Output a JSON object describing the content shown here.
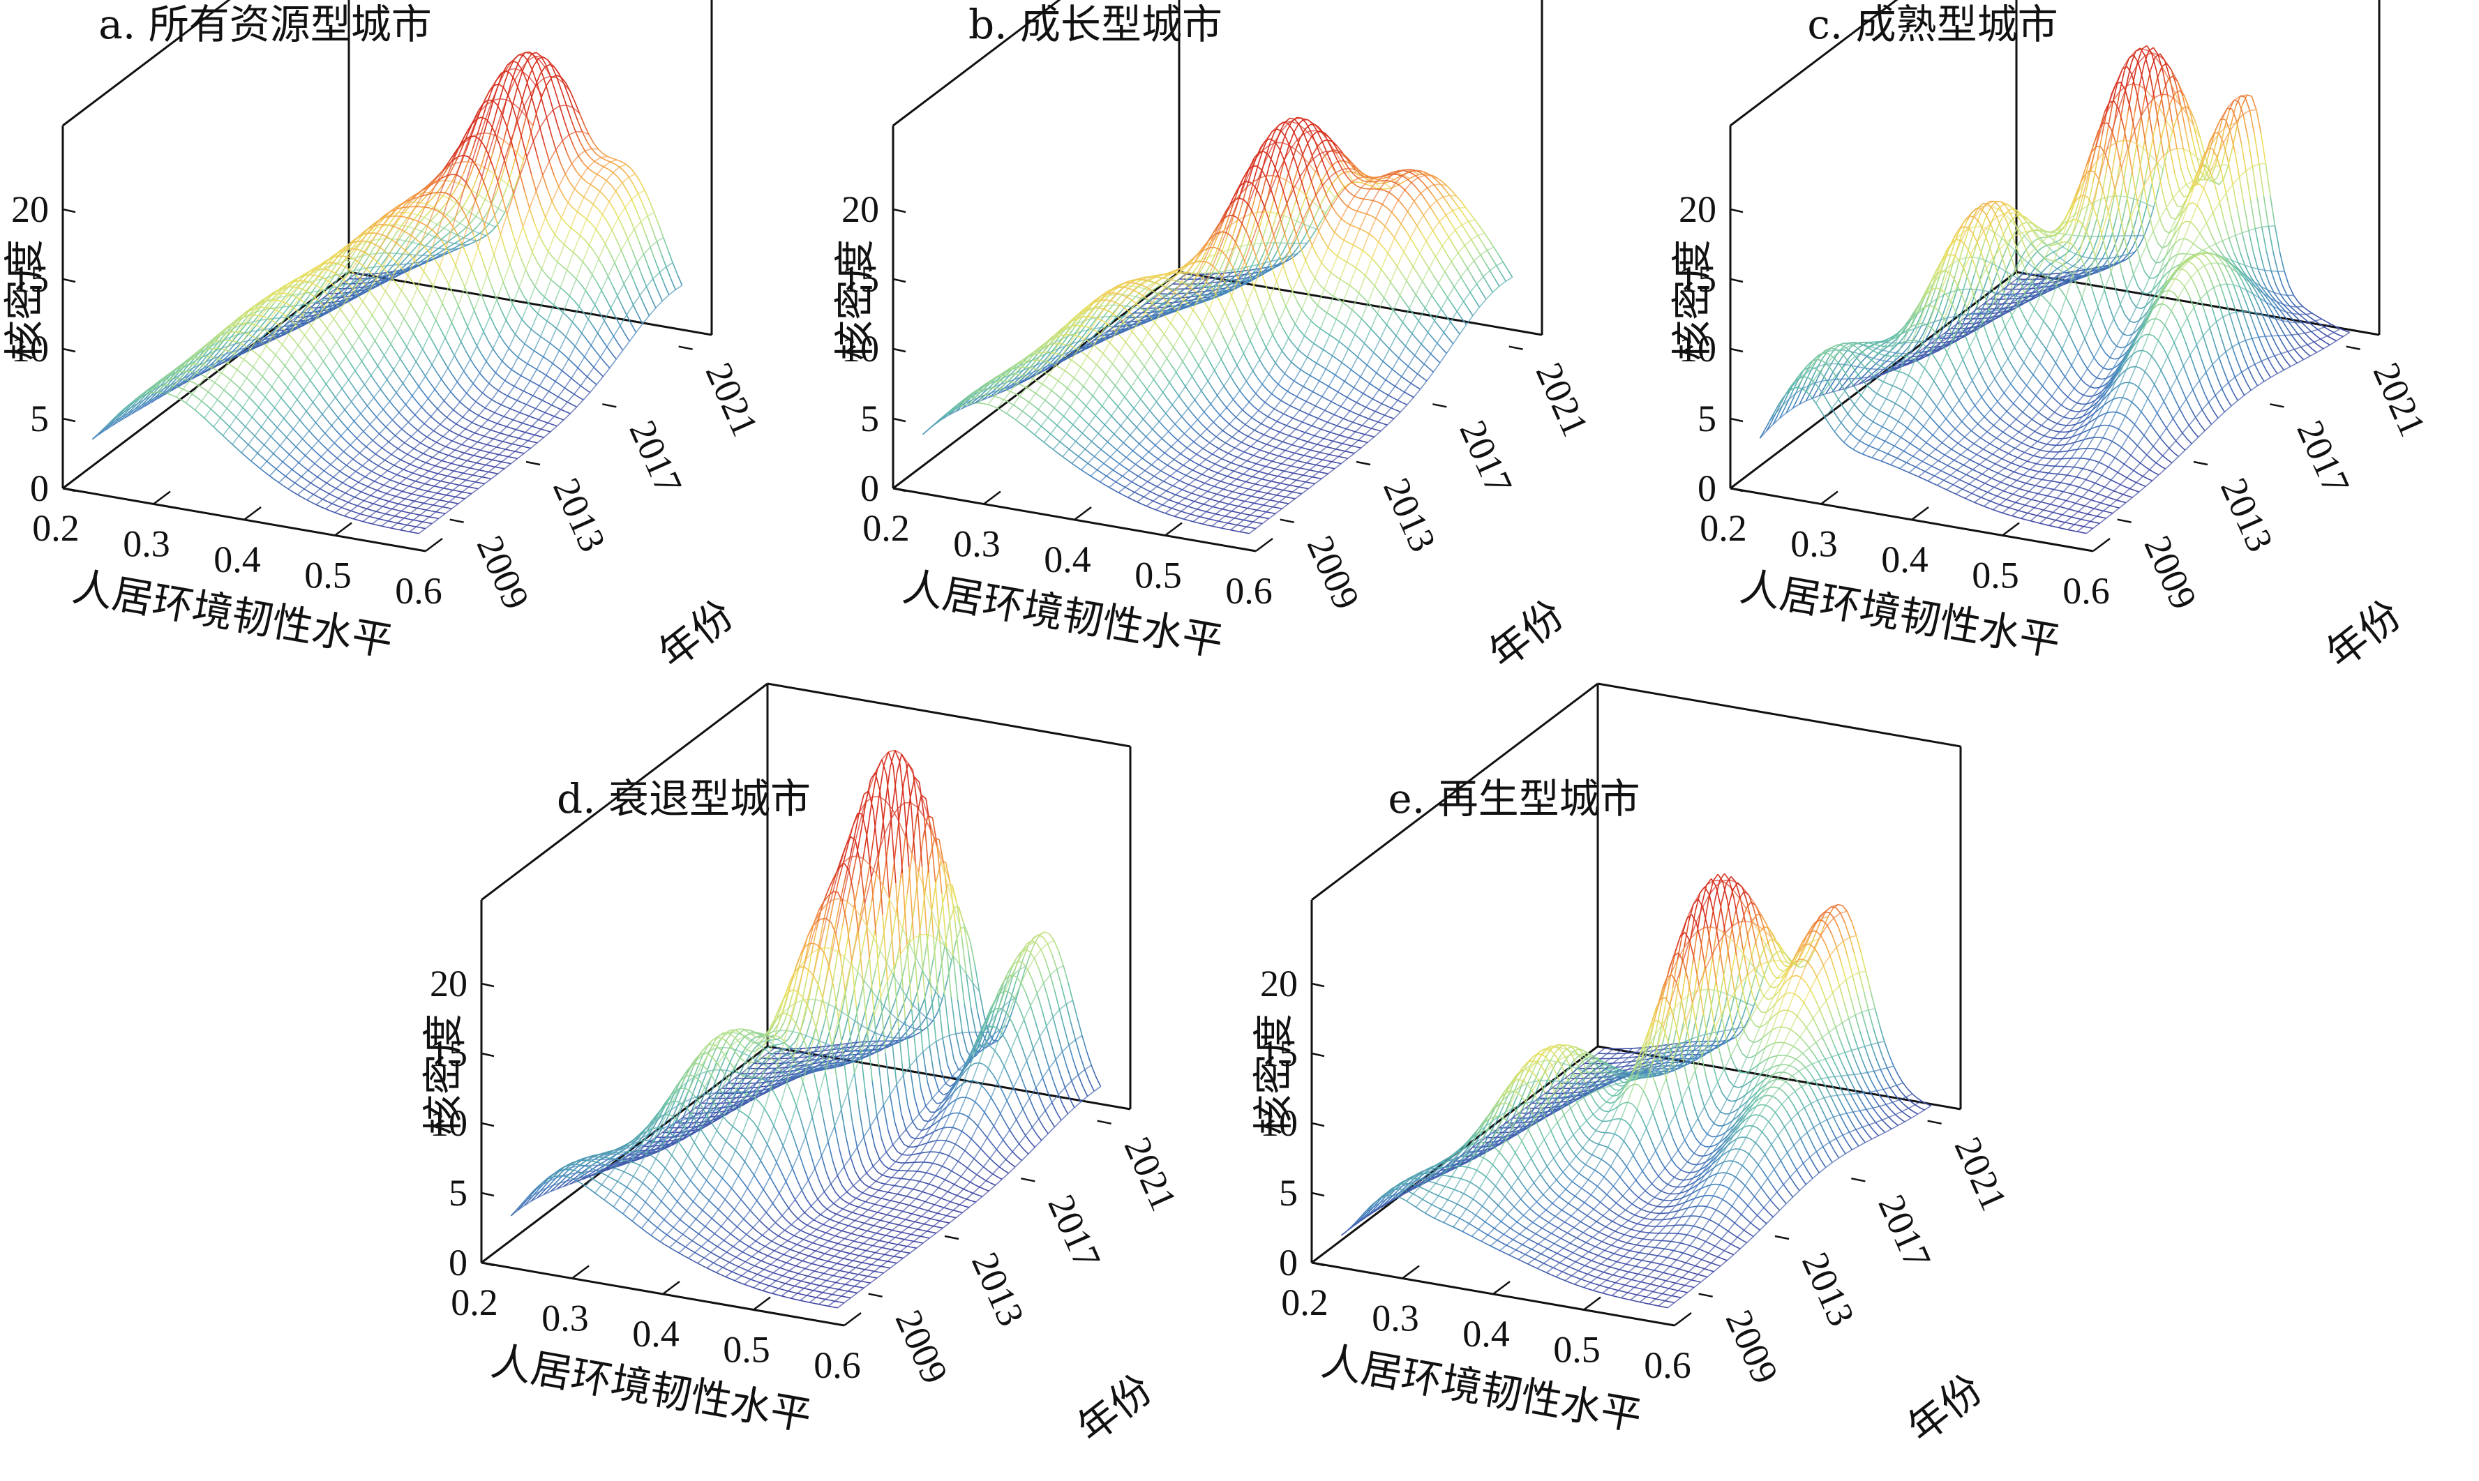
{
  "figure": {
    "panels": [
      {
        "id": "a",
        "title": "a. 所有资源型城市",
        "peak_kernel_density": 15.5
      },
      {
        "id": "b",
        "title": "b. 成长型城市",
        "peak_kernel_density": 13.5
      },
      {
        "id": "c",
        "title": "c. 成熟型城市",
        "peak_kernel_density": 19
      },
      {
        "id": "d",
        "title": "d. 衰退型城市",
        "peak_kernel_density": 22
      },
      {
        "id": "e",
        "title": "e. 再生型城市",
        "peak_kernel_density": 16
      }
    ],
    "colors": {
      "colormap": "Spectral_r",
      "low": "#3f3d9e",
      "mid": "#e6e35a",
      "high": "#d7301f"
    }
  },
  "chart_data": [
    {
      "type": "surface",
      "title": "a. 所有资源型城市",
      "xlabel": "人居环境韧性水平",
      "ylabel": "年份",
      "zlabel": "核密度",
      "x_ticks": [
        "0.2",
        "0.3",
        "0.4",
        "0.5",
        "0.6"
      ],
      "y_ticks": [
        "2009",
        "2013",
        "2017",
        "2021"
      ],
      "z_ticks": [
        "0",
        "5",
        "10",
        "15",
        "20"
      ],
      "xlim": [
        0.2,
        0.6
      ],
      "ylim": [
        2007,
        2022
      ],
      "zlim": [
        0,
        20
      ],
      "peaks": [
        {
          "x": 0.28,
          "year": 2007,
          "density": 4.5,
          "width": 0.05
        },
        {
          "x": 0.33,
          "year": 2012,
          "density": 6.5,
          "width": 0.06
        },
        {
          "x": 0.38,
          "year": 2017,
          "density": 8.5,
          "width": 0.05
        },
        {
          "x": 0.44,
          "year": 2020,
          "density": 15.5,
          "width": 0.03
        },
        {
          "x": 0.52,
          "year": 2021,
          "density": 11,
          "width": 0.04
        }
      ]
    },
    {
      "type": "surface",
      "title": "b. 成长型城市",
      "xlabel": "人居环境韧性水平",
      "ylabel": "年份",
      "zlabel": "核密度",
      "x_ticks": [
        "0.2",
        "0.3",
        "0.4",
        "0.5",
        "0.6"
      ],
      "y_ticks": [
        "2009",
        "2013",
        "2017",
        "2021"
      ],
      "z_ticks": [
        "0",
        "5",
        "10",
        "15",
        "20"
      ],
      "xlim": [
        0.2,
        0.6
      ],
      "ylim": [
        2007,
        2022
      ],
      "zlim": [
        0,
        20
      ],
      "peaks": [
        {
          "x": 0.27,
          "year": 2008,
          "density": 4.5,
          "width": 0.05
        },
        {
          "x": 0.33,
          "year": 2013,
          "density": 7,
          "width": 0.05
        },
        {
          "x": 0.4,
          "year": 2018,
          "density": 13.5,
          "width": 0.03
        },
        {
          "x": 0.48,
          "year": 2020,
          "density": 10,
          "width": 0.04
        },
        {
          "x": 0.55,
          "year": 2021,
          "density": 5,
          "width": 0.04
        }
      ]
    },
    {
      "type": "surface",
      "title": "c. 成熟型城市",
      "xlabel": "人居环境韧性水平",
      "ylabel": "年份",
      "zlabel": "核密度",
      "x_ticks": [
        "0.2",
        "0.3",
        "0.4",
        "0.5",
        "0.6"
      ],
      "y_ticks": [
        "2009",
        "2013",
        "2017",
        "2021"
      ],
      "z_ticks": [
        "0",
        "5",
        "10",
        "15",
        "20"
      ],
      "xlim": [
        0.2,
        0.6
      ],
      "ylim": [
        2007,
        2022
      ],
      "zlim": [
        0,
        20
      ],
      "peaks": [
        {
          "x": 0.26,
          "year": 2009,
          "density": 7,
          "width": 0.03
        },
        {
          "x": 0.33,
          "year": 2014,
          "density": 12,
          "width": 0.03
        },
        {
          "x": 0.4,
          "year": 2019,
          "density": 19,
          "width": 0.025
        },
        {
          "x": 0.47,
          "year": 2021,
          "density": 15,
          "width": 0.02
        },
        {
          "x": 0.52,
          "year": 2016,
          "density": 10,
          "width": 0.03
        }
      ]
    },
    {
      "type": "surface",
      "title": "d. 衰退型城市",
      "xlabel": "人居环境韧性水平",
      "ylabel": "年份",
      "zlabel": "核密度",
      "x_ticks": [
        "0.2",
        "0.3",
        "0.4",
        "0.5",
        "0.6"
      ],
      "y_ticks": [
        "2009",
        "2013",
        "2017",
        "2021"
      ],
      "z_ticks": [
        "0",
        "5",
        "10",
        "15",
        "20"
      ],
      "xlim": [
        0.2,
        0.6
      ],
      "ylim": [
        2007,
        2022
      ],
      "zlim": [
        0,
        20
      ],
      "peaks": [
        {
          "x": 0.27,
          "year": 2008,
          "density": 5,
          "width": 0.04
        },
        {
          "x": 0.34,
          "year": 2013,
          "density": 9,
          "width": 0.03
        },
        {
          "x": 0.43,
          "year": 2018,
          "density": 22,
          "width": 0.015
        },
        {
          "x": 0.4,
          "year": 2016,
          "density": 15,
          "width": 0.02
        },
        {
          "x": 0.52,
          "year": 2021,
          "density": 12,
          "width": 0.03
        }
      ]
    },
    {
      "type": "surface",
      "title": "e. 再生型城市",
      "xlabel": "人居环境韧性水平",
      "ylabel": "年份",
      "zlabel": "核密度",
      "x_ticks": [
        "0.2",
        "0.3",
        "0.4",
        "0.5",
        "0.6"
      ],
      "y_ticks": [
        "2009",
        "2013",
        "2017",
        "2021"
      ],
      "z_ticks": [
        "0",
        "5",
        "10",
        "15",
        "20"
      ],
      "xlim": [
        0.2,
        0.6
      ],
      "ylim": [
        2007,
        2022
      ],
      "zlim": [
        0,
        20
      ],
      "peaks": [
        {
          "x": 0.27,
          "year": 2008,
          "density": 3.5,
          "width": 0.03
        },
        {
          "x": 0.33,
          "year": 2013,
          "density": 8,
          "width": 0.03
        },
        {
          "x": 0.41,
          "year": 2018,
          "density": 16,
          "width": 0.02
        },
        {
          "x": 0.48,
          "year": 2021,
          "density": 13,
          "width": 0.03
        },
        {
          "x": 0.53,
          "year": 2016,
          "density": 6,
          "width": 0.03
        }
      ]
    }
  ]
}
